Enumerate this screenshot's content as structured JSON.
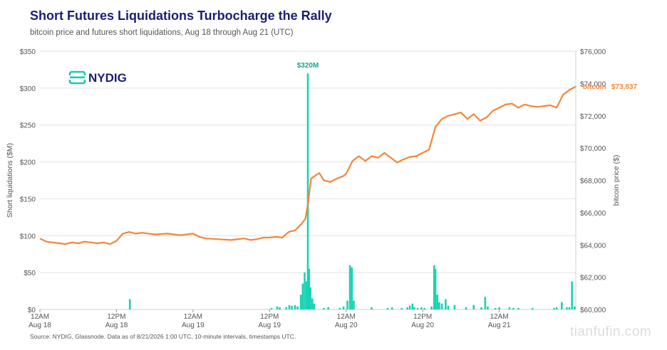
{
  "title": "Short Futures Liquidations Turbocharge the Rally",
  "subtitle": "bitcoin price and futures short liquidations, Aug 18 through Aug 21 (UTC)",
  "source": "Source: NYDIG, Glassnode. Data as of 8/21/2026 1:00 UTC, 10-minute intervals, timestamps UTC.",
  "logo_text": "NYDIG",
  "watermark": "tianfufin.com",
  "colors": {
    "title": "#1a1f71",
    "price": "#f5863a",
    "liquidations": "#19d3b2",
    "logo": "#1ec9b5",
    "grid": "#e2e2e2"
  },
  "chart_data": {
    "type": "line",
    "title": "Short Futures Liquidations Turbocharge the Rally",
    "x_axis": {
      "range_hours": [
        0,
        72
      ],
      "ticks": [
        {
          "hour": 0,
          "line1": "12AM",
          "line2": "Aug 18"
        },
        {
          "hour": 12,
          "line1": "12PM",
          "line2": "Aug 18"
        },
        {
          "hour": 24,
          "line1": "12AM",
          "line2": "Aug 19"
        },
        {
          "hour": 36,
          "line1": "12PM",
          "line2": "Aug 19"
        },
        {
          "hour": 48,
          "line1": "12AM",
          "line2": "Aug 20"
        },
        {
          "hour": 60,
          "line1": "12PM",
          "line2": "Aug 20"
        },
        {
          "hour": 72,
          "line1": "12AM",
          "line2": "Aug 21"
        }
      ]
    },
    "y_left": {
      "label": "Short liquidations ($M)",
      "ylim": [
        0,
        350
      ],
      "ticks": [
        0,
        50,
        100,
        150,
        200,
        250,
        300,
        350
      ],
      "tick_labels": [
        "$0",
        "$50",
        "$100",
        "$150",
        "$200",
        "$250",
        "$300",
        "$350"
      ]
    },
    "y_right": {
      "label": "bitcoin price ($)",
      "ylim": [
        60000,
        76000
      ],
      "ticks": [
        60000,
        62000,
        64000,
        66000,
        68000,
        70000,
        72000,
        74000,
        76000
      ],
      "tick_labels": [
        "$60,000",
        "$62,000",
        "$64,000",
        "$66,000",
        "$68,000",
        "$70,000",
        "$72,000",
        "$74,000",
        "$76,000"
      ]
    },
    "grid": true,
    "series": [
      {
        "name": "bitcoin",
        "axis": "right",
        "type": "line",
        "end_label": "bitcoin",
        "end_value_label": "$73,837",
        "points": [
          [
            0,
            64400
          ],
          [
            1,
            64200
          ],
          [
            2,
            64150
          ],
          [
            3,
            64100
          ],
          [
            4,
            64050
          ],
          [
            5,
            64150
          ],
          [
            6,
            64100
          ],
          [
            7,
            64200
          ],
          [
            8,
            64150
          ],
          [
            9,
            64100
          ],
          [
            10,
            64150
          ],
          [
            11,
            64050
          ],
          [
            12,
            64250
          ],
          [
            13,
            64700
          ],
          [
            14,
            64800
          ],
          [
            15,
            64700
          ],
          [
            16,
            64750
          ],
          [
            18,
            64650
          ],
          [
            20,
            64700
          ],
          [
            22,
            64600
          ],
          [
            24,
            64700
          ],
          [
            25,
            64500
          ],
          [
            26,
            64400
          ],
          [
            28,
            64350
          ],
          [
            30,
            64300
          ],
          [
            32,
            64400
          ],
          [
            33,
            64300
          ],
          [
            34,
            64350
          ],
          [
            35,
            64450
          ],
          [
            36,
            64450
          ],
          [
            37,
            64500
          ],
          [
            38,
            64450
          ],
          [
            39,
            64800
          ],
          [
            40,
            64900
          ],
          [
            41,
            65300
          ],
          [
            41.6,
            65600
          ],
          [
            42.0,
            66500
          ],
          [
            42.5,
            68100
          ],
          [
            43.2,
            68300
          ],
          [
            43.8,
            68450
          ],
          [
            44.5,
            68000
          ],
          [
            45.5,
            67900
          ],
          [
            46.5,
            68100
          ],
          [
            47.5,
            68250
          ],
          [
            48,
            68400
          ],
          [
            49,
            69200
          ],
          [
            50,
            69500
          ],
          [
            51,
            69200
          ],
          [
            52,
            69500
          ],
          [
            53,
            69400
          ],
          [
            54,
            69700
          ],
          [
            55,
            69400
          ],
          [
            56,
            69100
          ],
          [
            57,
            69300
          ],
          [
            58,
            69450
          ],
          [
            59,
            69500
          ],
          [
            60,
            69700
          ],
          [
            61,
            69900
          ],
          [
            62,
            71300
          ],
          [
            63,
            71800
          ],
          [
            64,
            72000
          ],
          [
            65,
            72100
          ],
          [
            66,
            72200
          ],
          [
            67,
            71800
          ],
          [
            68,
            72100
          ],
          [
            69,
            71700
          ],
          [
            70,
            71900
          ],
          [
            71,
            72300
          ],
          [
            72,
            72500
          ],
          [
            73,
            72700
          ],
          [
            74,
            72750
          ],
          [
            75,
            72500
          ],
          [
            76,
            72700
          ],
          [
            77,
            72600
          ],
          [
            78,
            72550
          ],
          [
            79,
            72600
          ],
          [
            80,
            72650
          ],
          [
            81,
            72500
          ],
          [
            82,
            73300
          ],
          [
            83,
            73600
          ],
          [
            84.1,
            73837
          ]
        ]
      },
      {
        "name": "short liquidations",
        "axis": "left",
        "type": "bar",
        "peak_label": "$320M",
        "bars": [
          [
            14.1,
            14
          ],
          [
            36.3,
            2
          ],
          [
            37.2,
            4
          ],
          [
            37.6,
            3
          ],
          [
            38.6,
            3
          ],
          [
            39.1,
            6
          ],
          [
            39.5,
            5
          ],
          [
            40.0,
            6
          ],
          [
            40.4,
            4
          ],
          [
            40.9,
            20
          ],
          [
            41.2,
            35
          ],
          [
            41.5,
            50
          ],
          [
            41.8,
            38
          ],
          [
            42.0,
            320
          ],
          [
            42.2,
            55
          ],
          [
            42.4,
            30
          ],
          [
            42.7,
            15
          ],
          [
            43.0,
            8
          ],
          [
            44.5,
            2
          ],
          [
            45.2,
            3
          ],
          [
            47.0,
            2
          ],
          [
            47.6,
            4
          ],
          [
            48.2,
            12
          ],
          [
            48.6,
            60
          ],
          [
            48.9,
            57
          ],
          [
            49.2,
            12
          ],
          [
            52.0,
            3
          ],
          [
            54.5,
            2
          ],
          [
            55.2,
            3
          ],
          [
            56.7,
            2
          ],
          [
            57.6,
            3
          ],
          [
            58.0,
            5
          ],
          [
            58.4,
            8
          ],
          [
            58.7,
            3
          ],
          [
            59.2,
            2
          ],
          [
            59.8,
            3
          ],
          [
            60.3,
            2
          ],
          [
            61.4,
            4
          ],
          [
            61.8,
            60
          ],
          [
            62.0,
            55
          ],
          [
            62.3,
            20
          ],
          [
            62.6,
            10
          ],
          [
            63.0,
            8
          ],
          [
            63.6,
            14
          ],
          [
            64.0,
            5
          ],
          [
            65.0,
            6
          ],
          [
            66.8,
            3
          ],
          [
            68.0,
            6
          ],
          [
            69.2,
            3
          ],
          [
            69.8,
            17
          ],
          [
            70.2,
            4
          ],
          [
            71.4,
            2
          ],
          [
            72.0,
            3
          ],
          [
            73.6,
            3
          ],
          [
            74.2,
            2
          ],
          [
            75.0,
            2
          ],
          [
            77.2,
            2
          ],
          [
            80.6,
            2
          ],
          [
            81.0,
            3
          ],
          [
            81.8,
            10
          ],
          [
            82.6,
            3
          ],
          [
            83.0,
            3
          ],
          [
            83.4,
            38
          ],
          [
            83.8,
            4
          ]
        ]
      }
    ]
  }
}
